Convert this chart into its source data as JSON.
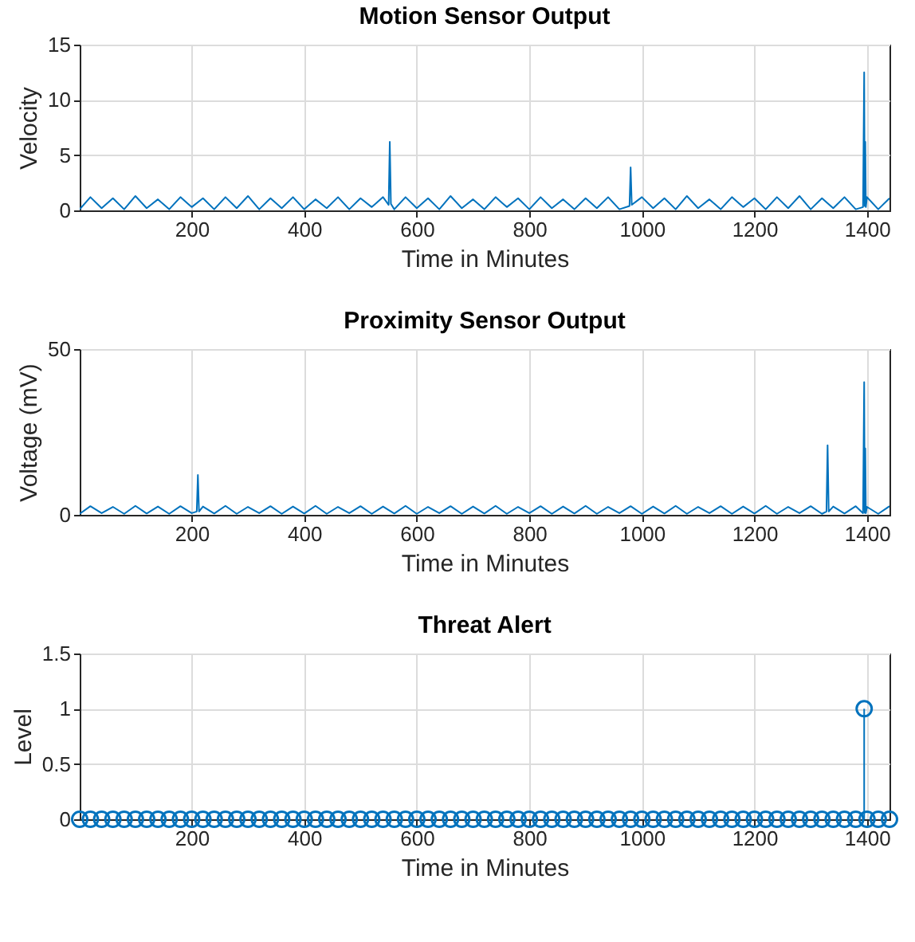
{
  "chart_data": [
    {
      "type": "line",
      "title": "Motion Sensor Output",
      "xlabel": "Time in Minutes",
      "ylabel": "Velocity",
      "xlim": [
        1,
        1440
      ],
      "xticks": [
        200,
        400,
        600,
        800,
        1000,
        1200,
        1400
      ],
      "ylim": [
        0,
        15
      ],
      "yticks": [
        0,
        5,
        10,
        15
      ],
      "grid": true,
      "line_style": "solid",
      "series": [
        {
          "color": "#0072bd",
          "x": [
            1,
            20,
            40,
            60,
            80,
            100,
            120,
            140,
            160,
            180,
            200,
            220,
            240,
            260,
            280,
            300,
            320,
            340,
            360,
            380,
            400,
            420,
            440,
            460,
            480,
            500,
            520,
            540,
            550,
            552,
            554,
            560,
            580,
            600,
            620,
            640,
            660,
            680,
            700,
            720,
            740,
            760,
            780,
            800,
            820,
            840,
            860,
            880,
            900,
            920,
            940,
            960,
            978,
            980,
            982,
            1000,
            1020,
            1040,
            1060,
            1080,
            1100,
            1120,
            1140,
            1160,
            1180,
            1200,
            1220,
            1240,
            1260,
            1280,
            1300,
            1320,
            1340,
            1360,
            1380,
            1393,
            1395,
            1396,
            1397,
            1398,
            1400,
            1420,
            1440
          ],
          "values": [
            0.1,
            1.2,
            0.2,
            1.1,
            0.1,
            1.3,
            0.2,
            1.0,
            0.1,
            1.2,
            0.3,
            1.1,
            0.1,
            1.2,
            0.2,
            1.3,
            0.1,
            1.1,
            0.2,
            1.2,
            0.1,
            1.0,
            0.2,
            1.2,
            0.1,
            1.1,
            0.3,
            1.2,
            0.5,
            6.2,
            0.6,
            0.1,
            1.2,
            0.2,
            1.1,
            0.1,
            1.3,
            0.2,
            1.0,
            0.1,
            1.2,
            0.3,
            1.1,
            0.1,
            1.2,
            0.2,
            1.0,
            0.1,
            1.1,
            0.2,
            1.2,
            0.1,
            0.4,
            3.9,
            0.5,
            1.2,
            0.2,
            1.1,
            0.1,
            1.3,
            0.2,
            1.0,
            0.1,
            1.2,
            0.3,
            1.1,
            0.1,
            1.2,
            0.2,
            1.3,
            0.1,
            1.1,
            0.2,
            1.2,
            0.1,
            0.3,
            12.5,
            0.4,
            6.2,
            0.3,
            1.2,
            0.1,
            1.1
          ]
        }
      ]
    },
    {
      "type": "line",
      "title": "Proximity Sensor Output",
      "xlabel": "Time in Minutes",
      "ylabel": "Voltage (mV)",
      "xlim": [
        1,
        1440
      ],
      "xticks": [
        200,
        400,
        600,
        800,
        1000,
        1200,
        1400
      ],
      "ylim": [
        0,
        50
      ],
      "yticks": [
        0,
        50
      ],
      "grid": true,
      "line_style": "solid",
      "series": [
        {
          "color": "#0072bd",
          "x": [
            1,
            20,
            40,
            60,
            80,
            100,
            120,
            140,
            160,
            180,
            200,
            209,
            211,
            213,
            220,
            240,
            260,
            280,
            300,
            320,
            340,
            360,
            380,
            400,
            420,
            440,
            460,
            480,
            500,
            520,
            540,
            560,
            580,
            600,
            620,
            640,
            660,
            680,
            700,
            720,
            740,
            760,
            780,
            800,
            820,
            840,
            860,
            880,
            900,
            920,
            940,
            960,
            980,
            1000,
            1020,
            1040,
            1060,
            1080,
            1100,
            1120,
            1140,
            1160,
            1180,
            1200,
            1220,
            1240,
            1260,
            1280,
            1300,
            1320,
            1328,
            1330,
            1332,
            1340,
            1360,
            1380,
            1393,
            1395,
            1396,
            1397,
            1398,
            1400,
            1420,
            1440
          ],
          "values": [
            0.3,
            2.6,
            0.5,
            2.4,
            0.3,
            2.7,
            0.4,
            2.5,
            0.3,
            2.6,
            0.5,
            1.0,
            12,
            1.0,
            2.5,
            0.4,
            2.7,
            0.3,
            2.4,
            0.5,
            2.6,
            0.3,
            2.5,
            0.4,
            2.7,
            0.3,
            2.4,
            0.5,
            2.6,
            0.3,
            2.5,
            0.4,
            2.7,
            0.3,
            2.4,
            0.5,
            2.6,
            0.3,
            2.5,
            0.4,
            2.7,
            0.3,
            2.4,
            0.5,
            2.6,
            0.3,
            2.5,
            0.4,
            2.7,
            0.3,
            2.4,
            0.5,
            2.6,
            0.3,
            2.5,
            0.4,
            2.7,
            0.3,
            2.4,
            0.5,
            2.6,
            0.3,
            2.5,
            0.4,
            2.7,
            0.3,
            2.4,
            0.5,
            2.6,
            0.3,
            1.0,
            21,
            1.0,
            2.5,
            0.4,
            2.6,
            0.5,
            40,
            0.6,
            20,
            0.5,
            2.4,
            0.3,
            2.6
          ]
        }
      ]
    },
    {
      "type": "lollipop",
      "title": "Threat Alert",
      "xlabel": "Time in Minutes",
      "ylabel": "Level",
      "xlim": [
        1,
        1440
      ],
      "xticks": [
        200,
        400,
        600,
        800,
        1000,
        1200,
        1400
      ],
      "ylim": [
        0,
        1.5
      ],
      "yticks": [
        0,
        0.5,
        1,
        1.5
      ],
      "grid": true,
      "marker": "circle",
      "series": [
        {
          "color": "#0072bd",
          "x": [
            1,
            20,
            40,
            60,
            80,
            100,
            120,
            140,
            160,
            180,
            200,
            220,
            240,
            260,
            280,
            300,
            320,
            340,
            360,
            380,
            400,
            420,
            440,
            460,
            480,
            500,
            520,
            540,
            560,
            580,
            600,
            620,
            640,
            660,
            680,
            700,
            720,
            740,
            760,
            780,
            800,
            820,
            840,
            860,
            880,
            900,
            920,
            940,
            960,
            980,
            1000,
            1020,
            1040,
            1060,
            1080,
            1100,
            1120,
            1140,
            1160,
            1180,
            1200,
            1220,
            1240,
            1260,
            1280,
            1300,
            1320,
            1340,
            1360,
            1380,
            1395,
            1400,
            1420,
            1440
          ],
          "values": [
            0,
            0,
            0,
            0,
            0,
            0,
            0,
            0,
            0,
            0,
            0,
            0,
            0,
            0,
            0,
            0,
            0,
            0,
            0,
            0,
            0,
            0,
            0,
            0,
            0,
            0,
            0,
            0,
            0,
            0,
            0,
            0,
            0,
            0,
            0,
            0,
            0,
            0,
            0,
            0,
            0,
            0,
            0,
            0,
            0,
            0,
            0,
            0,
            0,
            0,
            0,
            0,
            0,
            0,
            0,
            0,
            0,
            0,
            0,
            0,
            0,
            0,
            0,
            0,
            0,
            0,
            0,
            0,
            0,
            0,
            1,
            0,
            0,
            0
          ]
        }
      ]
    }
  ]
}
